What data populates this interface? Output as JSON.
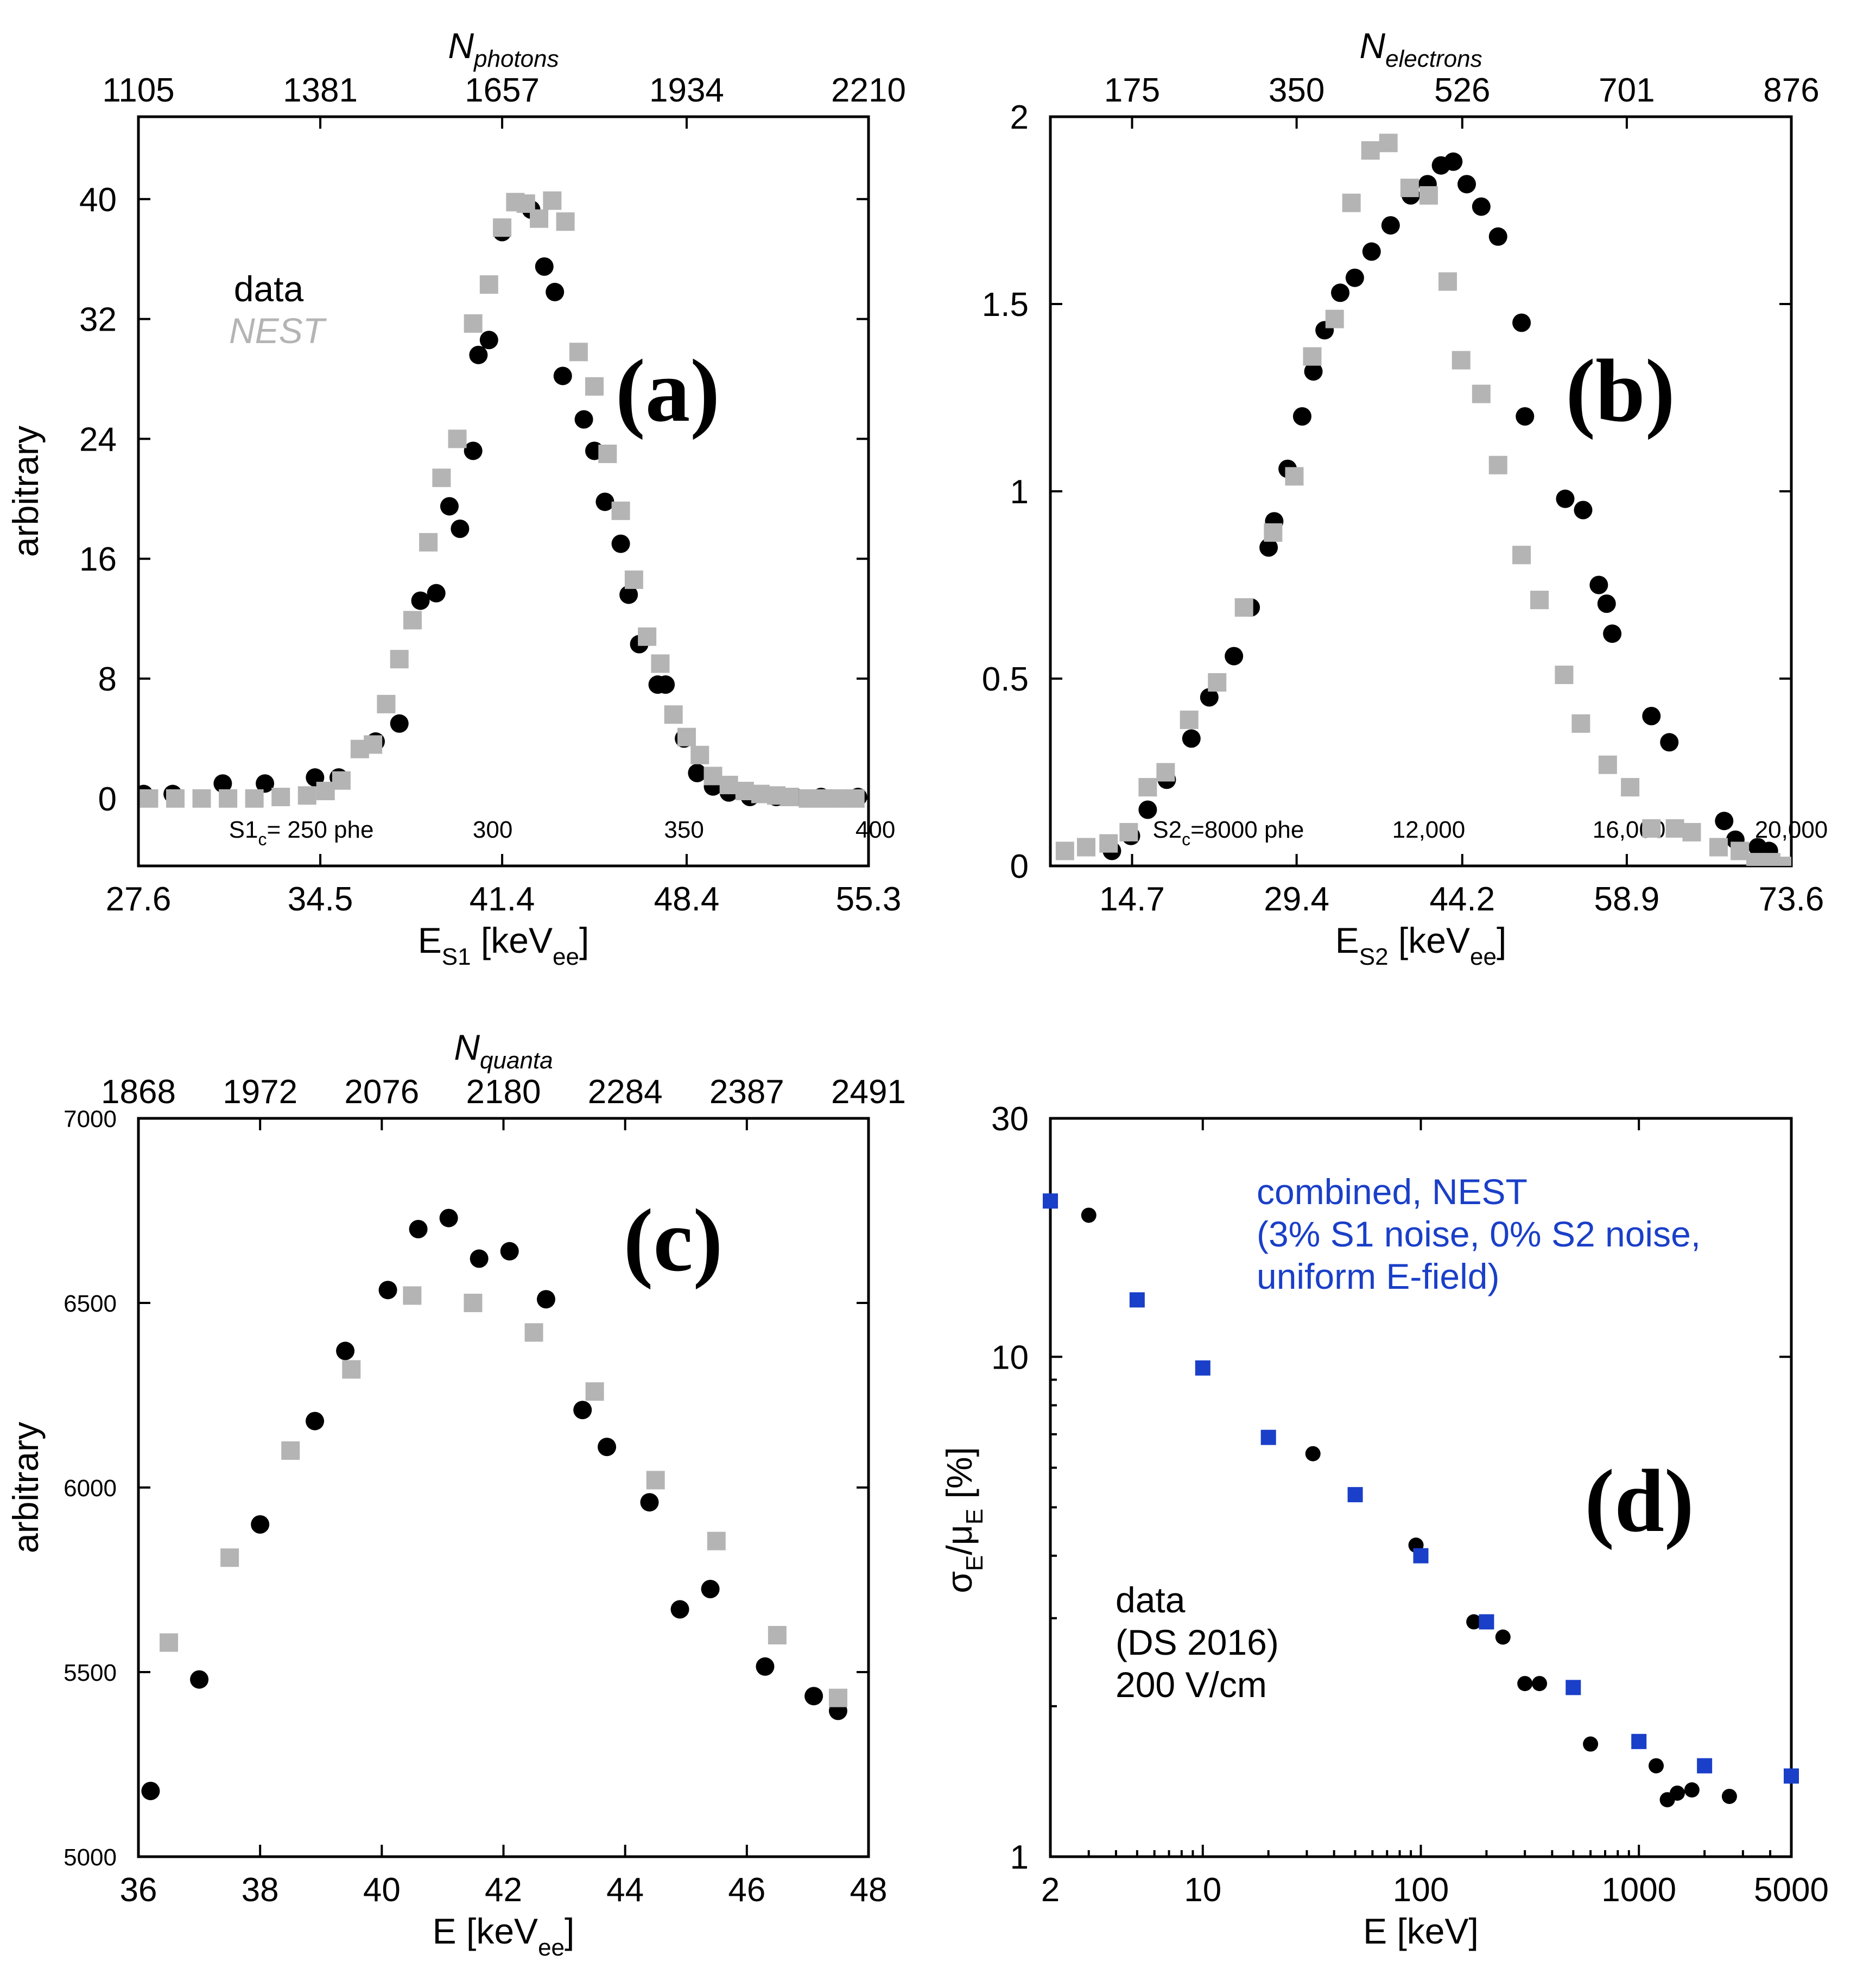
{
  "chart_data": [
    {
      "id": "a",
      "type": "scatter",
      "panel_label": "(a)",
      "xlabel": {
        "main": "E",
        "sub": "S1",
        "rest": " [keV",
        "sub2": "ee",
        "end": "]"
      },
      "ylabel": "arbitrary",
      "top_label": {
        "main": "N",
        "sub": "photons"
      },
      "xlim": [
        27.6,
        55.3
      ],
      "ylim": [
        -4.5,
        45.5
      ],
      "x_ticks": [
        "27.6",
        "34.5",
        "41.4",
        "48.4",
        "55.3"
      ],
      "y_ticks": [
        "0",
        "8",
        "16",
        "24",
        "32",
        "40"
      ],
      "top_ticks": [
        "1105",
        "1381",
        "1657",
        "1934",
        "2210"
      ],
      "inner_ticks": [
        "S1",
        "c",
        "= 250 phe",
        "300",
        "350",
        "400"
      ],
      "legend": {
        "data": "data",
        "nest": "NEST"
      },
      "colors": {
        "data": "#000000",
        "nest": "#b4b4b4"
      },
      "series": [
        {
          "name": "data",
          "marker": "circle",
          "x": [
            27.8,
            28.9,
            30.8,
            32.4,
            34.3,
            35.2,
            36.6,
            37.5,
            38.3,
            38.9,
            39.4,
            39.8,
            40.3,
            40.5,
            40.9,
            41.4,
            42.5,
            43.0,
            43.4,
            43.7,
            44.5,
            44.9,
            45.3,
            45.9,
            46.2,
            46.6,
            47.3,
            47.6,
            48.3,
            48.8,
            49.4,
            50.0,
            50.8,
            51.8,
            52.5,
            53.5,
            54.9
          ],
          "y": [
            0.3,
            0.3,
            1.0,
            1.0,
            1.4,
            1.4,
            3.8,
            5.0,
            13.2,
            13.7,
            19.5,
            18.0,
            23.2,
            29.6,
            30.6,
            37.8,
            39.3,
            35.5,
            33.8,
            28.2,
            25.3,
            23.2,
            19.8,
            17.0,
            13.6,
            10.3,
            7.6,
            7.6,
            4.0,
            1.7,
            0.8,
            0.4,
            0.1,
            0.1,
            0.1,
            0.1,
            0.1
          ]
        },
        {
          "name": "NEST",
          "marker": "square",
          "x": [
            28.0,
            29.0,
            30.0,
            31.0,
            32.0,
            33.0,
            34.0,
            34.7,
            35.3,
            36.0,
            36.5,
            37.0,
            37.5,
            38.0,
            38.6,
            39.1,
            39.7,
            40.3,
            40.9,
            41.4,
            41.9,
            42.3,
            42.8,
            43.3,
            43.8,
            44.3,
            44.9,
            45.4,
            45.9,
            46.4,
            46.9,
            47.4,
            47.9,
            48.4,
            48.9,
            49.4,
            50.0,
            50.6,
            51.2,
            51.8,
            52.3,
            53.0,
            53.6,
            54.2,
            54.8
          ],
          "y": [
            0.0,
            0.0,
            0.0,
            0.0,
            0.0,
            0.1,
            0.2,
            0.5,
            1.2,
            3.3,
            3.6,
            6.3,
            9.3,
            11.9,
            17.1,
            21.4,
            24.0,
            31.7,
            34.3,
            38.1,
            39.8,
            39.7,
            38.7,
            39.9,
            38.5,
            29.8,
            27.5,
            23.0,
            19.2,
            14.6,
            10.8,
            9.0,
            5.6,
            4.1,
            2.9,
            1.5,
            0.9,
            0.5,
            0.3,
            0.2,
            0.1,
            0.0,
            0.0,
            0.0,
            0.0
          ]
        }
      ]
    },
    {
      "id": "b",
      "type": "scatter",
      "panel_label": "(b)",
      "xlabel": {
        "main": "E",
        "sub": "S2",
        "rest": " [keV",
        "sub2": "ee",
        "end": "]"
      },
      "ylabel": "",
      "top_label": {
        "main": "N",
        "sub": "electrons"
      },
      "xlim": [
        7.4,
        73.6
      ],
      "ylim": [
        0,
        2
      ],
      "x_ticks": [
        "14.7",
        "29.4",
        "44.2",
        "58.9",
        "73.6"
      ],
      "y_ticks": [
        "0",
        "0.5",
        "1",
        "1.5",
        "2"
      ],
      "top_ticks": [
        "175",
        "350",
        "526",
        "701",
        "876"
      ],
      "inner_ticks": [
        "S2",
        "c",
        "=8000 phe",
        "12,000",
        "16,000",
        "20,000"
      ],
      "colors": {
        "data": "#000000",
        "nest": "#b4b4b4"
      },
      "series": [
        {
          "name": "data",
          "marker": "circle",
          "x": [
            12.9,
            14.6,
            16.1,
            17.8,
            20.0,
            21.6,
            23.8,
            25.3,
            26.9,
            27.4,
            28.6,
            29.9,
            30.9,
            31.9,
            33.3,
            34.6,
            36.1,
            37.8,
            39.6,
            41.1,
            42.3,
            43.4,
            44.6,
            45.9,
            47.4,
            49.5,
            49.8,
            53.4,
            55.0,
            56.4,
            57.1,
            57.6,
            61.1,
            62.7,
            67.6,
            68.6,
            70.6,
            71.6
          ],
          "y": [
            0.04,
            0.08,
            0.15,
            0.23,
            0.34,
            0.45,
            0.56,
            0.69,
            0.85,
            0.92,
            1.06,
            1.2,
            1.32,
            1.43,
            1.53,
            1.57,
            1.64,
            1.71,
            1.79,
            1.82,
            1.87,
            1.88,
            1.82,
            1.76,
            1.68,
            1.45,
            1.2,
            0.98,
            0.95,
            0.75,
            0.7,
            0.62,
            0.4,
            0.33,
            0.12,
            0.07,
            0.05,
            0.04
          ]
        },
        {
          "name": "NEST",
          "marker": "square",
          "x": [
            8.7,
            10.6,
            12.6,
            14.4,
            16.1,
            17.7,
            19.8,
            22.3,
            24.7,
            27.3,
            29.2,
            30.8,
            32.8,
            34.3,
            36.0,
            37.6,
            39.5,
            41.2,
            42.9,
            44.1,
            45.9,
            47.4,
            49.5,
            51.1,
            53.3,
            54.8,
            57.2,
            59.2,
            61.1,
            63.2,
            64.7,
            67.1,
            69.0,
            70.4,
            71.8,
            72.9,
            74.2,
            75.5
          ],
          "y": [
            0.04,
            0.05,
            0.06,
            0.09,
            0.21,
            0.25,
            0.39,
            0.49,
            0.69,
            0.89,
            1.04,
            1.36,
            1.46,
            1.77,
            1.91,
            1.93,
            1.81,
            1.79,
            1.56,
            1.35,
            1.26,
            1.07,
            0.83,
            0.71,
            0.51,
            0.38,
            0.27,
            0.21,
            0.1,
            0.1,
            0.09,
            0.05,
            0.04,
            0.01,
            0.01,
            0.0,
            0.0,
            0.0
          ]
        }
      ]
    },
    {
      "id": "c",
      "type": "scatter",
      "panel_label": "(c)",
      "xlabel": {
        "main": "E [keV",
        "sub": "ee",
        "end": "]"
      },
      "ylabel": "arbitrary",
      "top_label": {
        "main": "N",
        "sub": "quanta"
      },
      "xlim": [
        36,
        48
      ],
      "ylim": [
        5000,
        7000
      ],
      "x_ticks": [
        "36",
        "38",
        "40",
        "42",
        "44",
        "46",
        "48"
      ],
      "y_ticks": [
        "5000",
        "5500",
        "6000",
        "6500",
        "7000"
      ],
      "top_ticks": [
        "1868",
        "1972",
        "2076",
        "2180",
        "2284",
        "2387",
        "2491"
      ],
      "colors": {
        "data": "#000000",
        "nest": "#b4b4b4"
      },
      "series": [
        {
          "name": "data",
          "marker": "circle",
          "x": [
            36.2,
            37.0,
            38.0,
            38.9,
            39.4,
            40.1,
            40.6,
            41.1,
            41.6,
            42.1,
            42.7,
            43.3,
            43.7,
            44.4,
            44.9,
            45.4,
            46.3,
            47.1,
            47.5
          ],
          "y": [
            5178,
            5480,
            5900,
            6180,
            6370,
            6535,
            6700,
            6730,
            6620,
            6640,
            6510,
            6210,
            6110,
            5960,
            5670,
            5725,
            5515,
            5435,
            5395
          ]
        },
        {
          "name": "NEST",
          "marker": "square",
          "x": [
            36.5,
            37.5,
            38.5,
            39.5,
            40.5,
            41.5,
            42.5,
            43.5,
            44.5,
            45.5,
            46.5,
            47.5
          ],
          "y": [
            5580,
            5810,
            6100,
            6320,
            6520,
            6500,
            6420,
            6260,
            6020,
            5855,
            5600,
            5430
          ]
        }
      ]
    },
    {
      "id": "d",
      "type": "scatter",
      "panel_label": "(d)",
      "xlabel": "E [keV]",
      "ylabel": {
        "a": "σ",
        "a_sub": "E",
        "b": "/μ",
        "b_sub": "E",
        "c": " [%]"
      },
      "x_scale": "log",
      "y_scale": "log",
      "xlim": [
        2,
        5000
      ],
      "ylim": [
        1,
        30
      ],
      "x_ticks": [
        "2",
        "10",
        "100",
        "1000",
        "5000"
      ],
      "y_ticks": [
        "1",
        "10",
        "30"
      ],
      "legend": {
        "nest_lines": [
          "combined, NEST",
          "(3% S1 noise, 0% S2 noise,",
          "uniform E-field)"
        ],
        "data_lines": [
          "data",
          "(DS 2016)",
          "200 V/cm"
        ]
      },
      "colors": {
        "data": "#000000",
        "nest": "#1a3fc8"
      },
      "series": [
        {
          "name": "data",
          "marker": "circle",
          "x": [
            3.0,
            32.0,
            95.0,
            175.0,
            238.0,
            300.0,
            350.0,
            600.0,
            1200.0,
            1350.0,
            1500.0,
            1750.0,
            2600.0
          ],
          "y": [
            19.2,
            6.4,
            4.2,
            2.95,
            2.75,
            2.22,
            2.22,
            1.68,
            1.52,
            1.3,
            1.34,
            1.36,
            1.32
          ]
        },
        {
          "name": "NEST",
          "marker": "square",
          "x": [
            2.0,
            5.0,
            10.0,
            20.0,
            50.0,
            100.0,
            200.0,
            500.0,
            1000.0,
            2000.0,
            5000.0
          ],
          "y": [
            20.5,
            13.0,
            9.5,
            6.9,
            5.3,
            4.0,
            2.95,
            2.18,
            1.7,
            1.52,
            1.45
          ]
        }
      ]
    }
  ]
}
